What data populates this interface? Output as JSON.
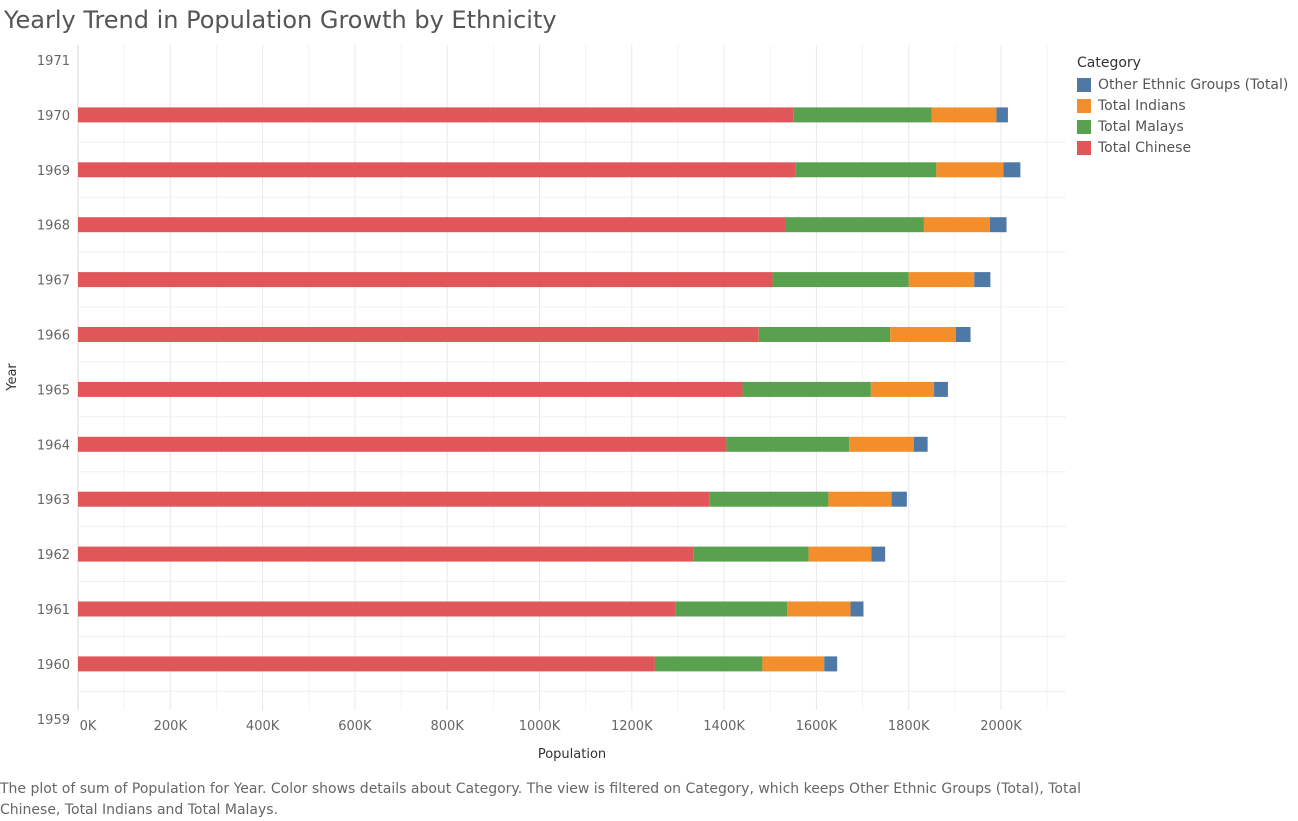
{
  "chart_data": {
    "type": "bar",
    "orientation": "horizontal",
    "stacked": true,
    "title": "Yearly Trend in Population Growth by Ethnicity",
    "xlabel": "Population",
    "ylabel": "Year",
    "xlim": [
      0,
      2100000
    ],
    "x_ticks": [
      0,
      200000,
      400000,
      600000,
      800000,
      1000000,
      1200000,
      1400000,
      1600000,
      1800000,
      2000000
    ],
    "x_tick_labels": [
      "0K",
      "200K",
      "400K",
      "600K",
      "800K",
      "1000K",
      "1200K",
      "1400K",
      "1600K",
      "1800K",
      "2000K"
    ],
    "y_ticks": [
      "1971",
      "1970",
      "1969",
      "1968",
      "1967",
      "1966",
      "1965",
      "1964",
      "1963",
      "1962",
      "1961",
      "1960",
      "1959"
    ],
    "categories": [
      "1970",
      "1969",
      "1968",
      "1967",
      "1966",
      "1965",
      "1964",
      "1963",
      "1962",
      "1961",
      "1960"
    ],
    "series": [
      {
        "name": "Total Chinese",
        "color": "#e15759",
        "values": [
          1550000,
          1555000,
          1533000,
          1505000,
          1475000,
          1440000,
          1405000,
          1368000,
          1333000,
          1295000,
          1250000
        ]
      },
      {
        "name": "Total Malays",
        "color": "#59a14f",
        "values": [
          300000,
          305000,
          300000,
          295000,
          285000,
          278000,
          266000,
          258000,
          250000,
          242000,
          233000
        ]
      },
      {
        "name": "Total Indians",
        "color": "#f28e2b",
        "values": [
          140000,
          145000,
          143000,
          142000,
          142000,
          137000,
          140000,
          137000,
          136000,
          137000,
          134000
        ]
      },
      {
        "name": "Other Ethnic Groups (Total)",
        "color": "#4e79a7",
        "values": [
          25000,
          37000,
          36000,
          35000,
          32000,
          30000,
          30000,
          33000,
          30000,
          28000,
          28000
        ]
      }
    ],
    "grid": true,
    "legend_position": "right"
  },
  "legend": {
    "title": "Category",
    "items": [
      {
        "label": "Other Ethnic Groups (Total)",
        "color": "#4e79a7"
      },
      {
        "label": "Total Indians",
        "color": "#f28e2b"
      },
      {
        "label": "Total Malays",
        "color": "#59a14f"
      },
      {
        "label": "Total Chinese",
        "color": "#e15759"
      }
    ]
  },
  "caption": "The plot of sum of Population for Year.  Color shows details about Category. The view is filtered on Category, which keeps Other Ethnic Groups (Total), Total Chinese, Total Indians and Total Malays."
}
